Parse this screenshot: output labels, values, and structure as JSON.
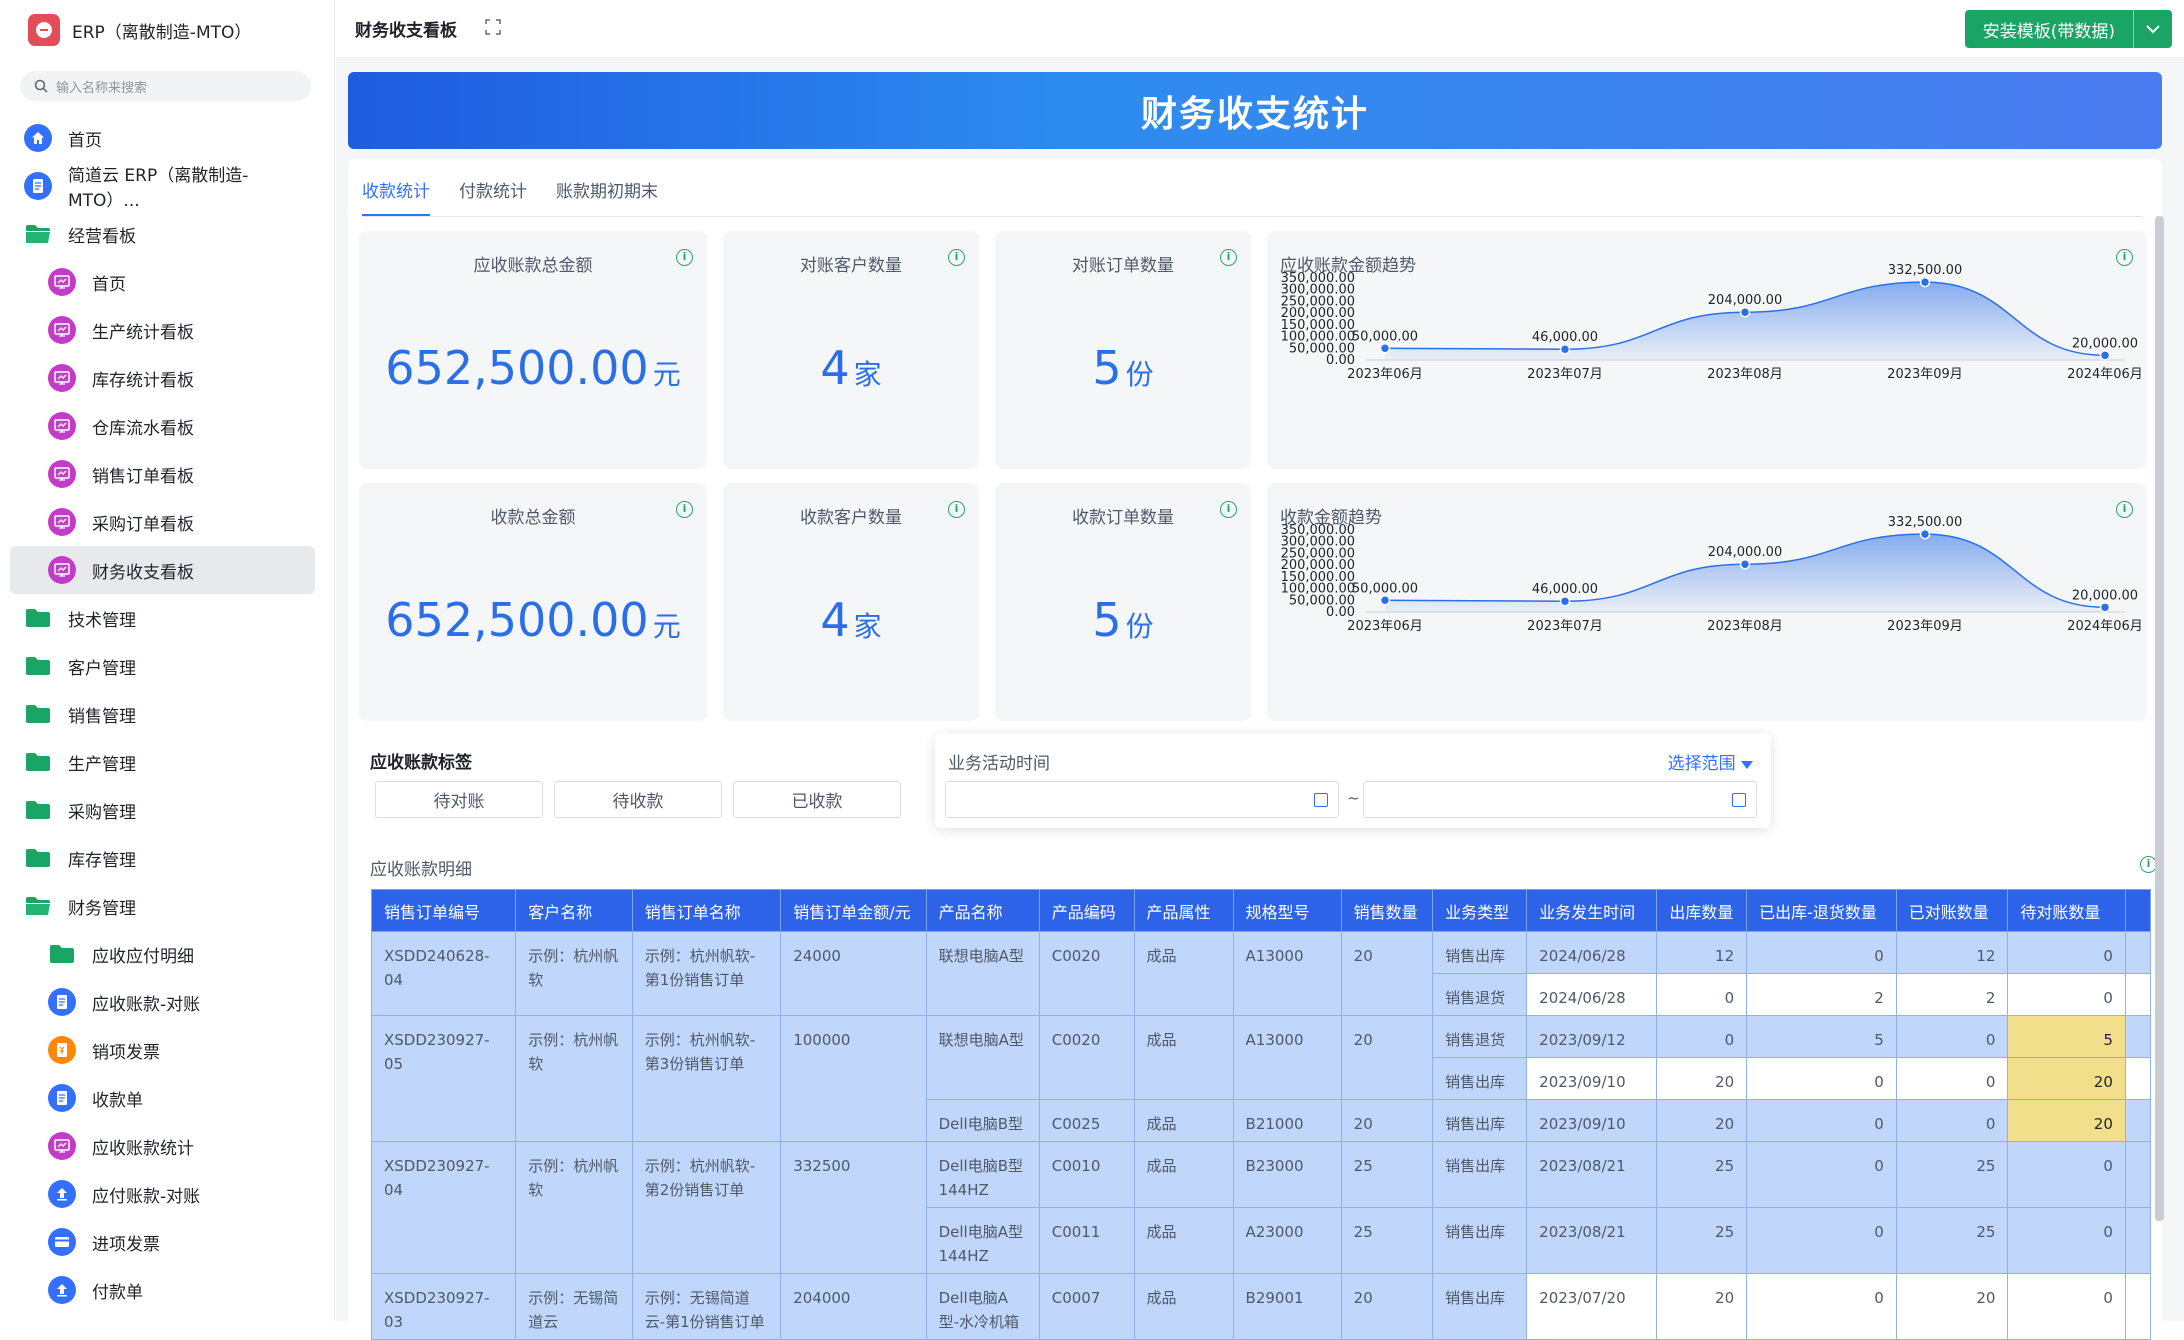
{
  "app": {
    "name": "ERP（离散制造-MTO）"
  },
  "search": {
    "placeholder": "输入名称来搜索"
  },
  "nav": [
    {
      "label": "首页",
      "icon": "home-icon",
      "level": 0
    },
    {
      "label": "简道云 ERP（离散制造-MTO）...",
      "icon": "doc-icon",
      "level": 0
    },
    {
      "label": "经营看板",
      "icon": "folder-open-icon",
      "level": 0
    },
    {
      "label": "首页",
      "icon": "dashboard-icon",
      "level": 1
    },
    {
      "label": "生产统计看板",
      "icon": "dashboard-icon",
      "level": 1
    },
    {
      "label": "库存统计看板",
      "icon": "dashboard-icon",
      "level": 1
    },
    {
      "label": "仓库流水看板",
      "icon": "dashboard-icon",
      "level": 1
    },
    {
      "label": "销售订单看板",
      "icon": "dashboard-icon",
      "level": 1
    },
    {
      "label": "采购订单看板",
      "icon": "dashboard-icon",
      "level": 1
    },
    {
      "label": "财务收支看板",
      "icon": "dashboard-icon",
      "level": 1,
      "active": true
    },
    {
      "label": "技术管理",
      "icon": "folder-icon",
      "level": 0
    },
    {
      "label": "客户管理",
      "icon": "folder-icon",
      "level": 0
    },
    {
      "label": "销售管理",
      "icon": "folder-icon",
      "level": 0
    },
    {
      "label": "生产管理",
      "icon": "folder-icon",
      "level": 0
    },
    {
      "label": "采购管理",
      "icon": "folder-icon",
      "level": 0
    },
    {
      "label": "库存管理",
      "icon": "folder-icon",
      "level": 0
    },
    {
      "label": "财务管理",
      "icon": "folder-open-icon",
      "level": 0
    },
    {
      "label": "应收应付明细",
      "icon": "folder-icon",
      "level": 1
    },
    {
      "label": "应收账款-对账",
      "icon": "doc-icon",
      "level": 1
    },
    {
      "label": "销项发票",
      "icon": "invoice-icon",
      "level": 1
    },
    {
      "label": "收款单",
      "icon": "doc-icon",
      "level": 1
    },
    {
      "label": "应收账款统计",
      "icon": "dashboard-icon",
      "level": 1
    },
    {
      "label": "应付账款-对账",
      "icon": "upload-icon",
      "level": 1
    },
    {
      "label": "进项发票",
      "icon": "card-icon",
      "level": 1
    },
    {
      "label": "付款单",
      "icon": "upload-icon",
      "level": 1
    }
  ],
  "topbar": {
    "title": "财务收支看板",
    "install_label": "安装模板(带数据)"
  },
  "banner": {
    "title": "财务收支统计"
  },
  "tabs": [
    "收款统计",
    "付款统计",
    "账款期初期末"
  ],
  "kpis": {
    "ar_total": {
      "title": "应收账款总金额",
      "value": "652,500.00",
      "unit": "元"
    },
    "ar_customers": {
      "title": "对账客户数量",
      "value": "4",
      "unit": "家"
    },
    "ar_orders": {
      "title": "对账订单数量",
      "value": "5",
      "unit": "份"
    },
    "rc_total": {
      "title": "收款总金额",
      "value": "652,500.00",
      "unit": "元"
    },
    "rc_customers": {
      "title": "收款客户数量",
      "value": "4",
      "unit": "家"
    },
    "rc_orders": {
      "title": "收款订单数量",
      "value": "5",
      "unit": "份"
    }
  },
  "chart_data": [
    {
      "type": "area",
      "title": "应收账款金额趋势",
      "categories": [
        "2023年06月",
        "2023年07月",
        "2023年08月",
        "2023年09月",
        "2024年06月"
      ],
      "values": [
        50000,
        46000,
        204000,
        332500,
        20000
      ],
      "data_labels": [
        "50,000.00",
        "46,000.00",
        "204,000.00",
        "332,500.00",
        "20,000.00"
      ],
      "y_ticks": [
        "350,000.00",
        "300,000.00",
        "250,000.00",
        "200,000.00",
        "150,000.00",
        "100,000.00",
        "50,000.00",
        "0.00"
      ],
      "ylim": [
        0,
        350000
      ],
      "color": "#2b6fe8",
      "grid": false
    },
    {
      "type": "area",
      "title": "收款金额趋势",
      "categories": [
        "2023年06月",
        "2023年07月",
        "2023年08月",
        "2023年09月",
        "2024年06月"
      ],
      "values": [
        50000,
        46000,
        204000,
        332500,
        20000
      ],
      "data_labels": [
        "50,000.00",
        "46,000.00",
        "204,000.00",
        "332,500.00",
        "20,000.00"
      ],
      "y_ticks": [
        "350,000.00",
        "300,000.00",
        "250,000.00",
        "200,000.00",
        "150,000.00",
        "100,000.00",
        "50,000.00",
        "0.00"
      ],
      "ylim": [
        0,
        350000
      ],
      "color": "#2b6fe8",
      "grid": false
    }
  ],
  "tags": {
    "title": "应收账款标签",
    "buttons": [
      "待对账",
      "待收款",
      "已收款"
    ]
  },
  "time_filter": {
    "label": "业务活动时间",
    "range_label": "选择范围",
    "separator": "~",
    "start": "",
    "end": ""
  },
  "detail": {
    "title": "应收账款明细",
    "columns": [
      "销售订单编号",
      "客户名称",
      "销售订单名称",
      "销售订单金额/元",
      "产品名称",
      "产品编码",
      "产品属性",
      "规格型号",
      "销售数量",
      "业务类型",
      "业务发生时间",
      "出库数量",
      "已出库-退货数量",
      "已对账数量",
      "待对账数量"
    ],
    "orders": [
      {
        "code": "XSDD240628-04",
        "customer": "示例：杭州帆软",
        "name": "示例：杭州帆软-第1份销售订单",
        "amount": "24000",
        "products": [
          {
            "name": "联想电脑A型",
            "code": "C0020",
            "attr": "成品",
            "spec": "A13000",
            "qty": "20",
            "biz": [
              {
                "type": "销售出库",
                "date": "2024/06/28",
                "out": "12",
                "ret": "0",
                "rec": "12",
                "pend": "0"
              },
              {
                "type": "销售退货",
                "date": "2024/06/28",
                "out": "0",
                "ret": "2",
                "rec": "2",
                "pend": "0"
              }
            ]
          }
        ]
      },
      {
        "code": "XSDD230927-05",
        "customer": "示例：杭州帆软",
        "name": "示例：杭州帆软-第3份销售订单",
        "amount": "100000",
        "products": [
          {
            "name": "联想电脑A型",
            "code": "C0020",
            "attr": "成品",
            "spec": "A13000",
            "qty": "20",
            "biz": [
              {
                "type": "销售退货",
                "date": "2023/09/12",
                "out": "0",
                "ret": "5",
                "rec": "0",
                "pend": "5"
              },
              {
                "type": "销售出库",
                "date": "2023/09/10",
                "out": "20",
                "ret": "0",
                "rec": "0",
                "pend": "20"
              }
            ]
          },
          {
            "name": "Dell电脑B型",
            "code": "C0025",
            "attr": "成品",
            "spec": "B21000",
            "qty": "20",
            "biz": [
              {
                "type": "销售出库",
                "date": "2023/09/10",
                "out": "20",
                "ret": "0",
                "rec": "0",
                "pend": "20"
              }
            ]
          }
        ]
      },
      {
        "code": "XSDD230927-04",
        "customer": "示例：杭州帆软",
        "name": "示例：杭州帆软-第2份销售订单",
        "amount": "332500",
        "products": [
          {
            "name": "Dell电脑B型 144HZ",
            "code": "C0010",
            "attr": "成品",
            "spec": "B23000",
            "qty": "25",
            "biz": [
              {
                "type": "销售出库",
                "date": "2023/08/21",
                "out": "25",
                "ret": "0",
                "rec": "25",
                "pend": "0"
              }
            ]
          },
          {
            "name": "Dell电脑A型 144HZ",
            "code": "C0011",
            "attr": "成品",
            "spec": "A23000",
            "qty": "25",
            "biz": [
              {
                "type": "销售出库",
                "date": "2023/08/21",
                "out": "25",
                "ret": "0",
                "rec": "25",
                "pend": "0"
              }
            ]
          }
        ]
      },
      {
        "code": "XSDD230927-03",
        "customer": "示例：无锡简道云",
        "name": "示例：无锡简道云-第1份销售订单",
        "amount": "204000",
        "products": [
          {
            "name": "Dell电脑A型-水冷机箱",
            "code": "C0007",
            "attr": "成品",
            "spec": "B29001",
            "qty": "20",
            "biz": [
              {
                "type": "销售出库",
                "date": "2023/07/20",
                "out": "20",
                "ret": "0",
                "rec": "20",
                "pend": "0"
              }
            ]
          }
        ]
      }
    ]
  }
}
